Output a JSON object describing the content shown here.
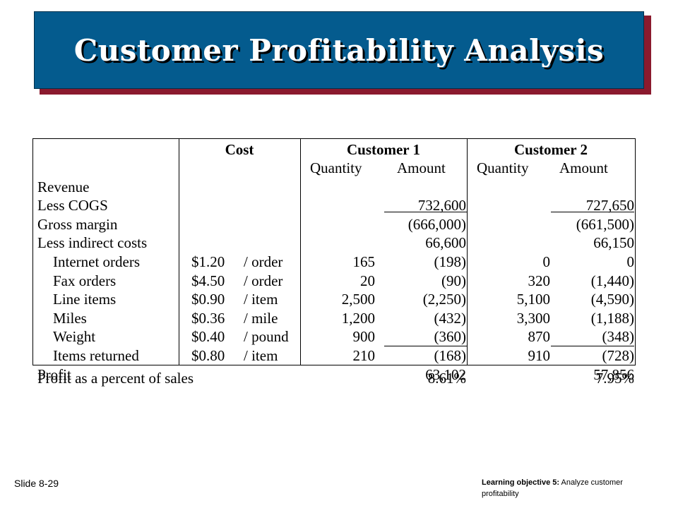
{
  "title": "Customer Profitability Analysis",
  "headers": {
    "cost": "Cost",
    "customer1": "Customer 1",
    "customer2": "Customer 2",
    "quantity": "Quantity",
    "amount": "Amount"
  },
  "rows": [
    {
      "label": "Revenue",
      "rate": "",
      "unit": "",
      "c1q": "",
      "c1a": "",
      "c2q": "",
      "c2a": ""
    },
    {
      "label": "Less COGS",
      "rate": "",
      "unit": "",
      "c1q": "",
      "c1a": "732,600",
      "c2q": "",
      "c2a": "727,650"
    },
    {
      "label": "Gross margin",
      "rate": "",
      "unit": "",
      "c1q": "",
      "c1a": "(666,000)",
      "c2q": "",
      "c2a": "(661,500)"
    },
    {
      "label": "Less indirect costs",
      "rate": "",
      "unit": "",
      "c1q": "",
      "c1a": "66,600",
      "c2q": "",
      "c2a": "66,150"
    },
    {
      "label": "Internet orders",
      "rate": "$1.20",
      "unit": "/ order",
      "c1q": "165",
      "c1a": "(198)",
      "c2q": "0",
      "c2a": "0"
    },
    {
      "label": "Fax orders",
      "rate": "$4.50",
      "unit": "/ order",
      "c1q": "20",
      "c1a": "(90)",
      "c2q": "320",
      "c2a": "(1,440)"
    },
    {
      "label": "Line items",
      "rate": "$0.90",
      "unit": "/ item",
      "c1q": "2,500",
      "c1a": "(2,250)",
      "c2q": "5,100",
      "c2a": "(4,590)"
    },
    {
      "label": "Miles",
      "rate": "$0.36",
      "unit": "/ mile",
      "c1q": "1,200",
      "c1a": "(432)",
      "c2q": "3,300",
      "c2a": "(1,188)"
    },
    {
      "label": "Weight",
      "rate": "$0.40",
      "unit": "/ pound",
      "c1q": "900",
      "c1a": "(360)",
      "c2q": "870",
      "c2a": "(348)"
    },
    {
      "label": "Items returned",
      "rate": "$0.80",
      "unit": "/ item",
      "c1q": "210",
      "c1a": "(168)",
      "c2q": "910",
      "c2a": "(728)"
    },
    {
      "label": "Profit",
      "rate": "",
      "unit": "",
      "c1q": "",
      "c1a": "63,102",
      "c2q": "",
      "c2a": "57,856"
    }
  ],
  "percent_row": {
    "label": "Profit as a percent of sales",
    "c1": "8.61%",
    "c2": "7.95%"
  },
  "footer": {
    "slide": "Slide 8-29",
    "objective_label": "Learning objective 5:",
    "objective_text": "Analyze customer profitability"
  }
}
